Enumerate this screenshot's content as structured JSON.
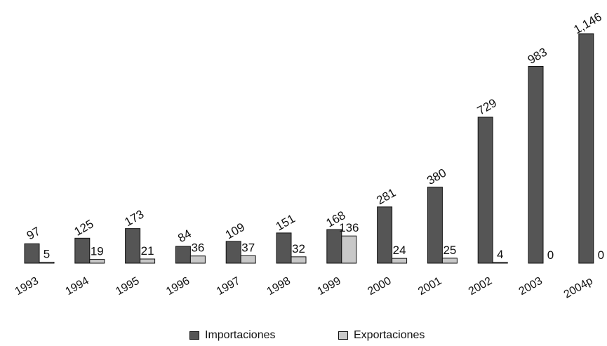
{
  "chart_data": {
    "type": "bar",
    "categories": [
      "1993",
      "1994",
      "1995",
      "1996",
      "1997",
      "1998",
      "1999",
      "2000",
      "2001",
      "2002",
      "2003",
      "2004p"
    ],
    "series": [
      {
        "name": "Importaciones",
        "values": [
          97,
          125,
          173,
          84,
          109,
          151,
          168,
          281,
          380,
          729,
          983,
          1146
        ],
        "color": "#555555"
      },
      {
        "name": "Exportaciones",
        "values": [
          5,
          19,
          21,
          36,
          37,
          32,
          136,
          24,
          25,
          4,
          0,
          0
        ],
        "color": "#c8c8c8"
      }
    ],
    "value_labels": {
      "Importaciones": [
        "97",
        "125",
        "173",
        "84",
        "109",
        "151",
        "168",
        "281",
        "380",
        "729",
        "983",
        "1,146"
      ],
      "Exportaciones": [
        "5",
        "19",
        "21",
        "36",
        "37",
        "32",
        "136",
        "24",
        "25",
        "4",
        "0",
        "0"
      ]
    },
    "title": "",
    "xlabel": "",
    "ylabel": "",
    "ylim": [
      0,
      1146
    ],
    "grid": false,
    "legend_position": "bottom"
  }
}
